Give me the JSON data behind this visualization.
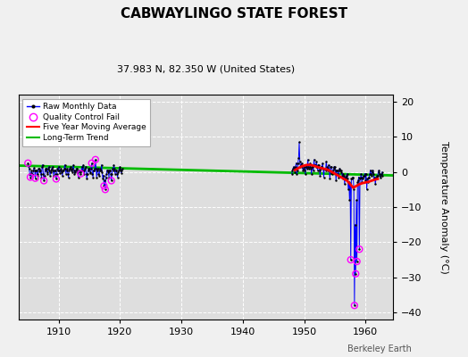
{
  "title": "CABWAYLINGO STATE FOREST",
  "subtitle": "37.983 N, 82.350 W (United States)",
  "ylabel": "Temperature Anomaly (°C)",
  "watermark": "Berkeley Earth",
  "xlim": [
    1903.5,
    1964.5
  ],
  "ylim": [
    -42,
    22
  ],
  "yticks": [
    -40,
    -30,
    -20,
    -10,
    0,
    10,
    20
  ],
  "xticks": [
    1910,
    1920,
    1930,
    1940,
    1950,
    1960
  ],
  "bg_color": "#dedede",
  "fig_color": "#f0f0f0",
  "raw_color": "#0000ff",
  "raw_dot_color": "#000000",
  "qc_color": "#ff00ff",
  "moving_avg_color": "#ff0000",
  "trend_color": "#00bb00",
  "raw_data_seg1": [
    [
      1905.0,
      2.5
    ],
    [
      1905.1,
      1.8
    ],
    [
      1905.2,
      0.8
    ],
    [
      1905.3,
      -0.5
    ],
    [
      1905.4,
      -1.5
    ],
    [
      1905.5,
      -0.3
    ],
    [
      1905.6,
      0.3
    ],
    [
      1905.7,
      -1.0
    ],
    [
      1905.8,
      -0.8
    ],
    [
      1905.9,
      0.5
    ],
    [
      1906.0,
      1.2
    ],
    [
      1906.1,
      0.5
    ],
    [
      1906.2,
      -1.8
    ],
    [
      1906.3,
      0.3
    ],
    [
      1906.4,
      0.5
    ],
    [
      1906.5,
      -0.5
    ],
    [
      1906.6,
      -1.0
    ],
    [
      1906.7,
      0.8
    ],
    [
      1906.8,
      1.0
    ],
    [
      1906.9,
      0.2
    ],
    [
      1907.0,
      0.5
    ],
    [
      1907.1,
      -0.5
    ],
    [
      1907.2,
      -1.5
    ],
    [
      1907.3,
      1.5
    ],
    [
      1907.4,
      2.0
    ],
    [
      1907.5,
      -0.5
    ],
    [
      1907.6,
      -2.5
    ],
    [
      1907.7,
      -1.0
    ],
    [
      1907.8,
      0.5
    ],
    [
      1907.9,
      1.0
    ],
    [
      1908.0,
      1.0
    ],
    [
      1908.1,
      0.0
    ],
    [
      1908.2,
      -0.5
    ],
    [
      1908.3,
      1.0
    ],
    [
      1908.4,
      1.5
    ],
    [
      1908.5,
      0.5
    ],
    [
      1908.6,
      -1.0
    ],
    [
      1908.7,
      0.0
    ],
    [
      1908.8,
      0.5
    ],
    [
      1908.9,
      1.0
    ],
    [
      1909.0,
      1.5
    ],
    [
      1909.1,
      0.5
    ],
    [
      1909.2,
      -1.0
    ],
    [
      1909.3,
      0.5
    ],
    [
      1909.4,
      0.5
    ],
    [
      1909.5,
      -0.5
    ],
    [
      1909.6,
      -2.0
    ],
    [
      1909.7,
      -0.5
    ],
    [
      1909.8,
      1.0
    ],
    [
      1909.9,
      0.5
    ],
    [
      1910.0,
      1.5
    ],
    [
      1910.1,
      0.5
    ],
    [
      1910.2,
      -0.3
    ],
    [
      1910.3,
      0.5
    ],
    [
      1910.4,
      1.0
    ],
    [
      1910.5,
      0.0
    ],
    [
      1910.6,
      -1.0
    ],
    [
      1910.7,
      0.5
    ],
    [
      1910.8,
      0.5
    ],
    [
      1910.9,
      0.8
    ],
    [
      1911.0,
      2.0
    ],
    [
      1911.1,
      1.0
    ],
    [
      1911.2,
      -0.5
    ],
    [
      1911.3,
      0.5
    ],
    [
      1911.4,
      1.0
    ],
    [
      1911.5,
      -0.5
    ],
    [
      1911.6,
      -1.5
    ],
    [
      1911.7,
      0.5
    ],
    [
      1911.8,
      1.0
    ],
    [
      1911.9,
      0.8
    ],
    [
      1912.0,
      1.5
    ],
    [
      1912.1,
      0.5
    ],
    [
      1912.2,
      0.0
    ],
    [
      1912.3,
      1.0
    ],
    [
      1912.4,
      2.0
    ],
    [
      1912.5,
      0.5
    ],
    [
      1912.6,
      -0.5
    ],
    [
      1912.7,
      0.0
    ],
    [
      1912.8,
      0.5
    ],
    [
      1912.9,
      1.0
    ],
    [
      1913.0,
      1.0
    ],
    [
      1913.1,
      0.0
    ],
    [
      1913.2,
      -1.5
    ],
    [
      1913.3,
      0.5
    ],
    [
      1913.4,
      0.5
    ],
    [
      1913.5,
      0.0
    ],
    [
      1913.6,
      -0.5
    ],
    [
      1913.7,
      0.5
    ],
    [
      1913.8,
      1.5
    ],
    [
      1913.9,
      0.5
    ],
    [
      1914.0,
      2.0
    ],
    [
      1914.1,
      0.5
    ],
    [
      1914.2,
      -0.5
    ],
    [
      1914.3,
      1.0
    ],
    [
      1914.4,
      1.5
    ],
    [
      1914.5,
      -0.5
    ],
    [
      1914.6,
      -2.0
    ],
    [
      1914.7,
      -0.5
    ],
    [
      1914.8,
      0.5
    ],
    [
      1914.9,
      1.0
    ],
    [
      1915.0,
      1.0
    ],
    [
      1915.1,
      0.0
    ],
    [
      1915.2,
      -0.3
    ],
    [
      1915.3,
      1.0
    ],
    [
      1915.4,
      2.5
    ],
    [
      1915.5,
      -0.5
    ],
    [
      1915.6,
      -1.5
    ],
    [
      1915.7,
      0.5
    ],
    [
      1915.8,
      0.5
    ],
    [
      1915.9,
      1.0
    ],
    [
      1916.0,
      3.5
    ],
    [
      1916.1,
      1.0
    ],
    [
      1916.2,
      -1.5
    ],
    [
      1916.3,
      0.5
    ],
    [
      1916.4,
      1.0
    ],
    [
      1916.5,
      -0.5
    ],
    [
      1916.6,
      -1.0
    ],
    [
      1916.7,
      0.5
    ],
    [
      1916.8,
      0.8
    ],
    [
      1916.9,
      0.5
    ],
    [
      1917.0,
      2.0
    ],
    [
      1917.1,
      0.0
    ],
    [
      1917.2,
      -2.0
    ],
    [
      1917.3,
      -1.0
    ],
    [
      1917.4,
      -4.0
    ],
    [
      1917.5,
      -2.5
    ],
    [
      1917.6,
      -5.0
    ],
    [
      1917.7,
      -1.5
    ],
    [
      1917.8,
      -0.5
    ],
    [
      1917.9,
      0.5
    ],
    [
      1918.0,
      0.5
    ],
    [
      1918.1,
      0.0
    ],
    [
      1918.2,
      -1.5
    ],
    [
      1918.3,
      0.5
    ],
    [
      1918.4,
      0.5
    ],
    [
      1918.5,
      -0.5
    ],
    [
      1918.6,
      -2.5
    ],
    [
      1918.7,
      -0.5
    ],
    [
      1918.8,
      1.0
    ],
    [
      1918.9,
      0.5
    ],
    [
      1919.0,
      2.0
    ],
    [
      1919.1,
      1.0
    ],
    [
      1919.2,
      -0.5
    ],
    [
      1919.3,
      0.5
    ],
    [
      1919.4,
      0.5
    ],
    [
      1919.5,
      -0.5
    ],
    [
      1919.6,
      -1.5
    ],
    [
      1919.7,
      0.0
    ],
    [
      1919.8,
      0.5
    ],
    [
      1919.9,
      1.0
    ],
    [
      1920.0,
      1.5
    ],
    [
      1920.1,
      0.5
    ],
    [
      1920.2,
      -0.3
    ],
    [
      1920.3,
      0.5
    ],
    [
      1920.4,
      0.8
    ]
  ],
  "raw_data_seg2": [
    [
      1948.0,
      -0.5
    ],
    [
      1948.1,
      0.5
    ],
    [
      1948.2,
      1.0
    ],
    [
      1948.3,
      1.5
    ],
    [
      1948.4,
      1.0
    ],
    [
      1948.5,
      0.0
    ],
    [
      1948.6,
      1.5
    ],
    [
      1948.7,
      2.5
    ],
    [
      1948.8,
      -0.5
    ],
    [
      1948.9,
      0.5
    ],
    [
      1949.0,
      2.5
    ],
    [
      1949.1,
      4.0
    ],
    [
      1949.2,
      8.5
    ],
    [
      1949.3,
      3.0
    ],
    [
      1949.4,
      1.5
    ],
    [
      1949.5,
      2.0
    ],
    [
      1949.6,
      2.5
    ],
    [
      1949.7,
      1.5
    ],
    [
      1949.8,
      0.5
    ],
    [
      1949.9,
      1.0
    ],
    [
      1950.0,
      1.5
    ],
    [
      1950.1,
      0.5
    ],
    [
      1950.2,
      -0.5
    ],
    [
      1950.3,
      1.5
    ],
    [
      1950.4,
      2.0
    ],
    [
      1950.5,
      1.0
    ],
    [
      1950.6,
      3.5
    ],
    [
      1950.7,
      1.5
    ],
    [
      1950.8,
      1.0
    ],
    [
      1950.9,
      1.5
    ],
    [
      1951.0,
      2.5
    ],
    [
      1951.1,
      1.0
    ],
    [
      1951.2,
      -0.5
    ],
    [
      1951.3,
      1.5
    ],
    [
      1951.4,
      1.5
    ],
    [
      1951.5,
      0.5
    ],
    [
      1951.6,
      3.5
    ],
    [
      1951.7,
      2.0
    ],
    [
      1951.8,
      2.0
    ],
    [
      1951.9,
      1.5
    ],
    [
      1952.0,
      3.0
    ],
    [
      1952.1,
      1.5
    ],
    [
      1952.2,
      0.5
    ],
    [
      1952.3,
      2.0
    ],
    [
      1952.4,
      2.0
    ],
    [
      1952.5,
      0.5
    ],
    [
      1952.6,
      -1.0
    ],
    [
      1952.7,
      1.0
    ],
    [
      1952.8,
      1.5
    ],
    [
      1952.9,
      1.5
    ],
    [
      1953.0,
      2.5
    ],
    [
      1953.1,
      1.0
    ],
    [
      1953.2,
      -1.5
    ],
    [
      1953.3,
      1.0
    ],
    [
      1953.4,
      1.0
    ],
    [
      1953.5,
      0.5
    ],
    [
      1953.6,
      3.0
    ],
    [
      1953.7,
      1.5
    ],
    [
      1953.8,
      0.5
    ],
    [
      1953.9,
      1.0
    ],
    [
      1954.0,
      2.0
    ],
    [
      1954.1,
      0.5
    ],
    [
      1954.2,
      -2.0
    ],
    [
      1954.3,
      1.5
    ],
    [
      1954.4,
      1.5
    ],
    [
      1954.5,
      -0.3
    ],
    [
      1954.6,
      -0.5
    ],
    [
      1954.7,
      0.5
    ],
    [
      1954.8,
      1.0
    ],
    [
      1954.9,
      1.5
    ],
    [
      1955.0,
      1.5
    ],
    [
      1955.1,
      0.5
    ],
    [
      1955.2,
      -2.5
    ],
    [
      1955.3,
      0.5
    ],
    [
      1955.4,
      0.5
    ],
    [
      1955.5,
      -0.5
    ],
    [
      1955.6,
      -1.5
    ],
    [
      1955.7,
      0.5
    ],
    [
      1955.8,
      1.0
    ],
    [
      1955.9,
      0.5
    ],
    [
      1956.0,
      0.5
    ],
    [
      1956.1,
      0.0
    ],
    [
      1956.2,
      -1.0
    ],
    [
      1956.3,
      -0.5
    ],
    [
      1956.4,
      -2.0
    ],
    [
      1956.5,
      -1.0
    ],
    [
      1956.6,
      -3.5
    ],
    [
      1956.7,
      -1.5
    ],
    [
      1956.8,
      -1.5
    ],
    [
      1956.9,
      -1.0
    ],
    [
      1957.0,
      -0.5
    ],
    [
      1957.1,
      -2.0
    ],
    [
      1957.2,
      -5.0
    ],
    [
      1957.3,
      -3.0
    ],
    [
      1957.4,
      -8.0
    ],
    [
      1957.5,
      -3.5
    ],
    [
      1957.6,
      -25.0
    ],
    [
      1957.7,
      -2.0
    ],
    [
      1957.8,
      -2.0
    ],
    [
      1957.9,
      -1.5
    ],
    [
      1958.0,
      -1.5
    ],
    [
      1958.1,
      -5.0
    ],
    [
      1958.2,
      -38.0
    ],
    [
      1958.3,
      -15.0
    ],
    [
      1958.4,
      -29.0
    ],
    [
      1958.5,
      -8.0
    ],
    [
      1958.6,
      -25.5
    ],
    [
      1958.7,
      -3.0
    ],
    [
      1958.8,
      -2.5
    ],
    [
      1958.9,
      -1.5
    ],
    [
      1959.0,
      -22.0
    ],
    [
      1959.1,
      -2.0
    ],
    [
      1959.2,
      -1.5
    ],
    [
      1959.3,
      -0.5
    ],
    [
      1959.4,
      -3.0
    ],
    [
      1959.5,
      -1.5
    ],
    [
      1959.6,
      -2.0
    ],
    [
      1959.7,
      -1.0
    ],
    [
      1959.8,
      -1.0
    ],
    [
      1959.9,
      -0.5
    ],
    [
      1960.0,
      -2.5
    ],
    [
      1960.1,
      -0.5
    ],
    [
      1960.2,
      -5.0
    ],
    [
      1960.3,
      -2.0
    ],
    [
      1960.4,
      -3.0
    ],
    [
      1960.5,
      -1.5
    ],
    [
      1960.6,
      -1.5
    ],
    [
      1960.7,
      -0.5
    ],
    [
      1960.8,
      0.5
    ],
    [
      1960.9,
      -0.5
    ],
    [
      1961.0,
      -1.0
    ],
    [
      1961.1,
      0.0
    ],
    [
      1961.2,
      0.5
    ],
    [
      1961.3,
      -0.5
    ],
    [
      1961.4,
      -2.0
    ],
    [
      1961.5,
      -1.5
    ],
    [
      1961.6,
      -3.5
    ],
    [
      1961.7,
      -2.0
    ],
    [
      1961.8,
      -1.5
    ],
    [
      1961.9,
      -1.0
    ],
    [
      1962.0,
      -1.0
    ],
    [
      1962.1,
      0.0
    ],
    [
      1962.2,
      0.5
    ],
    [
      1962.3,
      -0.5
    ],
    [
      1962.4,
      -1.5
    ],
    [
      1962.5,
      -1.0
    ],
    [
      1962.6,
      -0.5
    ],
    [
      1962.7,
      0.0
    ],
    [
      1962.8,
      -1.0
    ]
  ],
  "qc_fail_data": [
    [
      1905.0,
      2.5
    ],
    [
      1905.4,
      -1.5
    ],
    [
      1906.2,
      -1.8
    ],
    [
      1907.6,
      -2.5
    ],
    [
      1909.6,
      -2.0
    ],
    [
      1913.6,
      -0.5
    ],
    [
      1915.4,
      2.5
    ],
    [
      1916.0,
      3.5
    ],
    [
      1917.4,
      -4.0
    ],
    [
      1917.6,
      -5.0
    ],
    [
      1918.6,
      -2.5
    ],
    [
      1957.6,
      -25.0
    ],
    [
      1958.2,
      -38.0
    ],
    [
      1958.4,
      -29.0
    ],
    [
      1958.6,
      -25.5
    ],
    [
      1959.0,
      -22.0
    ]
  ],
  "moving_avg": [
    [
      1948.5,
      0.5
    ],
    [
      1949.0,
      1.0
    ],
    [
      1949.5,
      1.5
    ],
    [
      1950.0,
      1.8
    ],
    [
      1950.5,
      2.0
    ],
    [
      1951.0,
      2.0
    ],
    [
      1951.5,
      1.8
    ],
    [
      1952.0,
      1.5
    ],
    [
      1952.5,
      1.2
    ],
    [
      1953.0,
      1.0
    ],
    [
      1953.5,
      0.8
    ],
    [
      1954.0,
      0.5
    ],
    [
      1954.5,
      0.0
    ],
    [
      1955.0,
      -0.5
    ],
    [
      1955.5,
      -1.0
    ],
    [
      1956.0,
      -1.5
    ],
    [
      1956.5,
      -2.0
    ],
    [
      1957.0,
      -2.5
    ],
    [
      1957.5,
      -3.5
    ],
    [
      1958.0,
      -4.5
    ],
    [
      1958.5,
      -4.0
    ],
    [
      1959.0,
      -3.5
    ],
    [
      1959.5,
      -3.2
    ],
    [
      1960.0,
      -3.0
    ],
    [
      1960.5,
      -2.8
    ],
    [
      1961.0,
      -2.5
    ],
    [
      1961.5,
      -2.2
    ],
    [
      1962.0,
      -2.0
    ]
  ],
  "trend_line": [
    [
      1903.5,
      1.8
    ],
    [
      1964.5,
      -1.0
    ]
  ]
}
